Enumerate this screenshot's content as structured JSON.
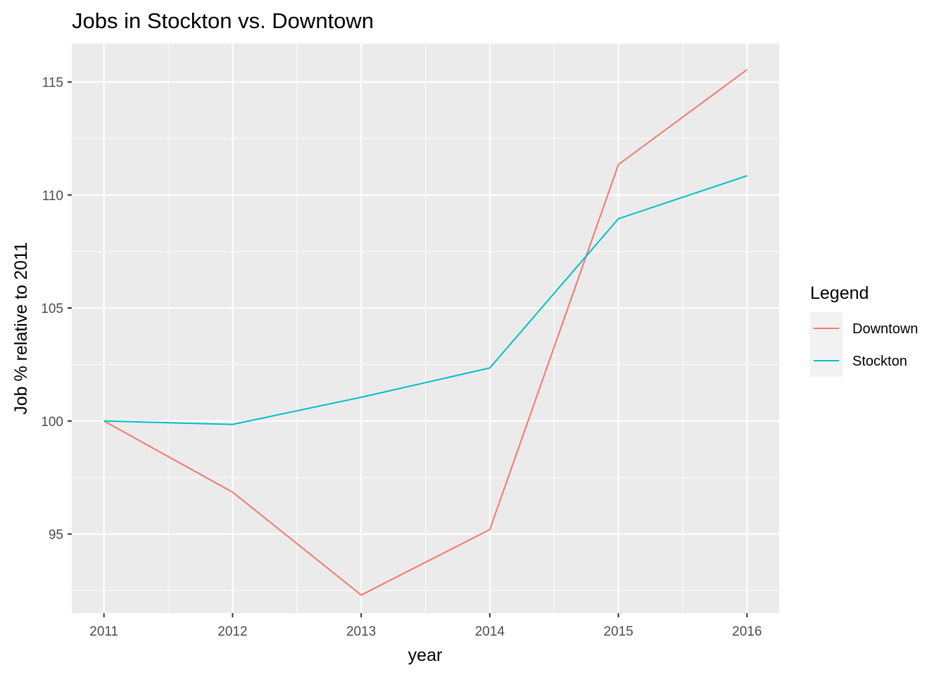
{
  "chart_data": {
    "type": "line",
    "title": "Jobs in Stockton vs. Downtown",
    "xlabel": "year",
    "ylabel": "Job % relative to 2011",
    "x": [
      2011,
      2012,
      2013,
      2014,
      2015,
      2016
    ],
    "xlim": [
      2010.75,
      2016.25
    ],
    "ylim": [
      91.5,
      116.7
    ],
    "y_ticks": [
      95,
      100,
      105,
      110,
      115
    ],
    "grid": true,
    "legend": {
      "title": "Legend",
      "placement": "right"
    },
    "series": [
      {
        "name": "Downtown",
        "color": "#F8766D",
        "values": [
          100,
          96.85,
          92.3,
          95.2,
          111.35,
          115.55
        ]
      },
      {
        "name": "Stockton",
        "color": "#00BFC4",
        "values": [
          100,
          99.85,
          101.05,
          102.35,
          108.95,
          110.85
        ]
      }
    ],
    "background": "#EBEBEB",
    "gridline_color": "#FFFFFF"
  }
}
